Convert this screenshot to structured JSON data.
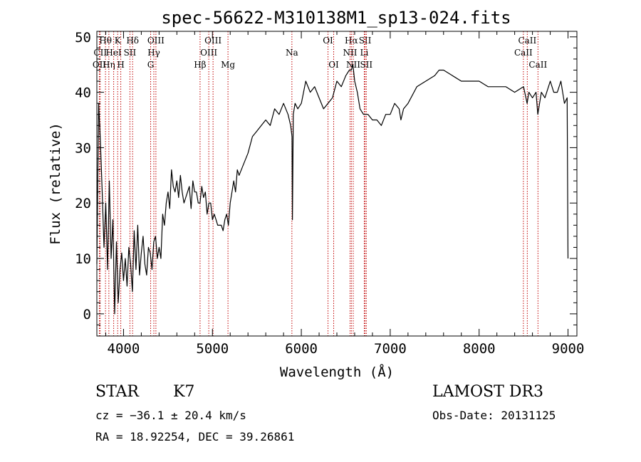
{
  "chart_data": {
    "type": "line",
    "title": "spec-56622-M310138M1_sp13-024.fits",
    "xlabel": "Wavelength (Å)",
    "ylabel": "Flux (relative)",
    "xlim": [
      3700,
      9100
    ],
    "ylim": [
      -4,
      51
    ],
    "xticks": [
      4000,
      5000,
      6000,
      7000,
      8000,
      9000
    ],
    "yticks": [
      0,
      10,
      20,
      30,
      40,
      50
    ],
    "grid": false,
    "line_color": "#000000",
    "marker_color": "#c00000",
    "series": [
      {
        "values_description": "",
        "x": [
          3700,
          3720,
          3740,
          3760,
          3780,
          3800,
          3820,
          3840,
          3860,
          3880,
          3900,
          3920,
          3940,
          3960,
          3980,
          4000,
          4020,
          4040,
          4060,
          4080,
          4100,
          4120,
          4140,
          4160,
          4180,
          4200,
          4220,
          4240,
          4260,
          4280,
          4300,
          4320,
          4340,
          4360,
          4380,
          4400,
          4420,
          4440,
          4460,
          4480,
          4500,
          4520,
          4540,
          4560,
          4580,
          4600,
          4620,
          4640,
          4660,
          4680,
          4700,
          4720,
          4740,
          4760,
          4780,
          4800,
          4820,
          4840,
          4860,
          4880,
          4900,
          4920,
          4940,
          4960,
          4980,
          5000,
          5020,
          5040,
          5060,
          5080,
          5100,
          5120,
          5140,
          5160,
          5180,
          5200,
          5220,
          5240,
          5260,
          5280,
          5300,
          5350,
          5400,
          5450,
          5500,
          5550,
          5600,
          5650,
          5700,
          5750,
          5800,
          5850,
          5880,
          5895,
          5900,
          5910,
          5930,
          5960,
          6000,
          6050,
          6100,
          6150,
          6200,
          6250,
          6300,
          6350,
          6400,
          6450,
          6500,
          6540,
          6563,
          6580,
          6600,
          6630,
          6660,
          6700,
          6750,
          6800,
          6850,
          6900,
          6950,
          7000,
          7050,
          7100,
          7120,
          7150,
          7200,
          7300,
          7400,
          7500,
          7550,
          7600,
          7700,
          7800,
          7900,
          8000,
          8100,
          8200,
          8300,
          8400,
          8500,
          8540,
          8560,
          8600,
          8640,
          8660,
          8700,
          8740,
          8780,
          8800,
          8840,
          8880,
          8920,
          8960,
          8990,
          9000
        ],
        "y": [
          9,
          38,
          31,
          22,
          12,
          20,
          8,
          24,
          10,
          17,
          0,
          13,
          2,
          8,
          11,
          6,
          10,
          5,
          12,
          9,
          4,
          15,
          8,
          16,
          7,
          11,
          14,
          9,
          7,
          12,
          11,
          8,
          13,
          14,
          10,
          12,
          10,
          18,
          16,
          20,
          22,
          19,
          26,
          23,
          22,
          24,
          21,
          25,
          22,
          20,
          21,
          22,
          23,
          19,
          24,
          22,
          22,
          20,
          20,
          23,
          21,
          22,
          18,
          20,
          20,
          17,
          18,
          17,
          16,
          16,
          16,
          15,
          17,
          18,
          16,
          20,
          22,
          24,
          22,
          26,
          25,
          27,
          29,
          32,
          33,
          34,
          35,
          34,
          37,
          36,
          38,
          36,
          34,
          32,
          17,
          36,
          38,
          37,
          38,
          42,
          40,
          41,
          39,
          37,
          38,
          39,
          42,
          41,
          43,
          44,
          44,
          45,
          42,
          40,
          37,
          36,
          36,
          35,
          35,
          34,
          36,
          36,
          38,
          37,
          35,
          37,
          38,
          41,
          42,
          43,
          44,
          44,
          43,
          42,
          42,
          42,
          41,
          41,
          41,
          40,
          41,
          38,
          40,
          39,
          40,
          36,
          40,
          39,
          41,
          42,
          40,
          40,
          42,
          38,
          39,
          10
        ]
      }
    ],
    "line_markers": [
      {
        "name": "Hθ",
        "x": 3797,
        "row": 1
      },
      {
        "name": "CII",
        "x": 3738,
        "row": 2
      },
      {
        "name": "OII",
        "x": 3728,
        "row": 3
      },
      {
        "name": "Hη",
        "x": 3835,
        "row": 3
      },
      {
        "name": "K",
        "x": 3934,
        "row": 1
      },
      {
        "name": "HeI",
        "x": 3889,
        "row": 2
      },
      {
        "name": "H",
        "x": 3969,
        "row": 3
      },
      {
        "name": "Hδ",
        "x": 4102,
        "row": 1
      },
      {
        "name": "SII",
        "x": 4072,
        "row": 2
      },
      {
        "name": "OIII",
        "x": 4364,
        "row": 1
      },
      {
        "name": "Hγ",
        "x": 4341,
        "row": 2
      },
      {
        "name": "G",
        "x": 4305,
        "row": 3
      },
      {
        "name": "Hβ",
        "x": 4861,
        "row": 3
      },
      {
        "name": "OIII",
        "x": 5007,
        "row": 1
      },
      {
        "name": "OIII",
        "x": 4959,
        "row": 2
      },
      {
        "name": "Mg",
        "x": 5175,
        "row": 3
      },
      {
        "name": "Na",
        "x": 5894,
        "row": 2
      },
      {
        "name": "OI",
        "x": 6300,
        "row": 1
      },
      {
        "name": "OI",
        "x": 6364,
        "row": 3
      },
      {
        "name": "Hα",
        "x": 6563,
        "row": 1
      },
      {
        "name": "SII",
        "x": 6717,
        "row": 1
      },
      {
        "name": "NII",
        "x": 6548,
        "row": 2
      },
      {
        "name": "Li",
        "x": 6708,
        "row": 2
      },
      {
        "name": "NII",
        "x": 6584,
        "row": 3
      },
      {
        "name": "SII",
        "x": 6731,
        "row": 3
      },
      {
        "name": "CaII",
        "x": 8542,
        "row": 1
      },
      {
        "name": "CaII",
        "x": 8498,
        "row": 2
      },
      {
        "name": "CaII",
        "x": 8662,
        "row": 3
      }
    ]
  },
  "info": {
    "class_label": "STAR",
    "subclass": "K7",
    "survey": "LAMOST DR3",
    "cz": "cz = −36.1 ± 20.4 km/s",
    "obs_date": "Obs-Date: 20131125",
    "coords": "RA =  18.92254, DEC =  39.26861"
  }
}
